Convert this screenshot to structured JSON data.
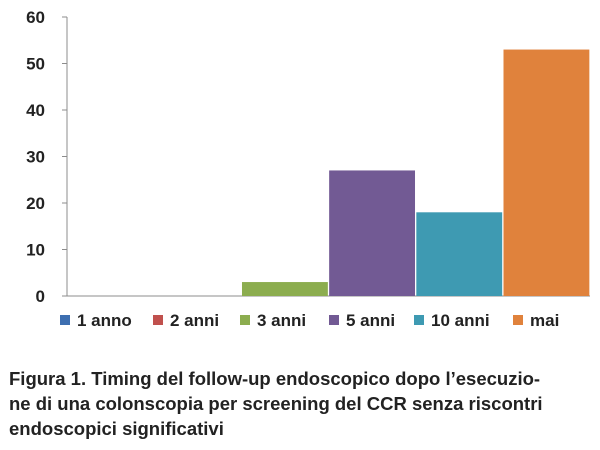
{
  "chart_data": {
    "type": "bar",
    "categories": [
      "1 anno",
      "2 anni",
      "3 anni",
      "5 anni",
      "10 anni",
      "mai"
    ],
    "values": [
      0,
      0,
      3,
      27,
      18,
      53
    ],
    "colors": [
      "#3d6fb0",
      "#c0504d",
      "#8cad4f",
      "#725a94",
      "#3e9ab2",
      "#e0823c"
    ],
    "ylim": [
      0,
      60
    ],
    "yticks": [
      "0",
      "10",
      "20",
      "30",
      "40",
      "50",
      "60"
    ],
    "grid": false,
    "legend": "bottom"
  },
  "caption": {
    "lines": [
      "Figura 1. Timing del follow-up endoscopico dopo l’esecuzio-",
      "ne di una colonscopia per screening del CCR senza riscontri",
      "endoscopici significativi"
    ]
  }
}
